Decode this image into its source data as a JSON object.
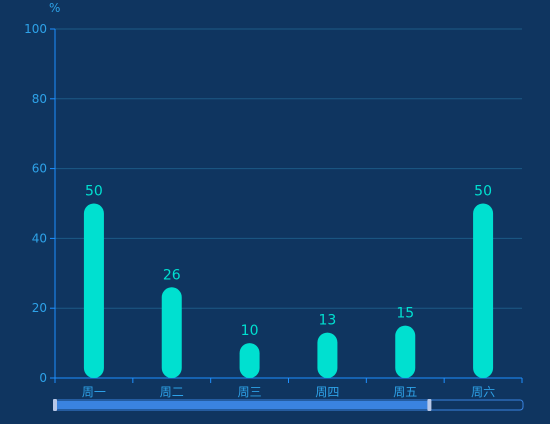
{
  "chart_data": {
    "type": "bar",
    "title": "",
    "y_unit_label": "%",
    "xlabel": "",
    "ylabel": "",
    "categories": [
      "周一",
      "周二",
      "周三",
      "周四",
      "周五",
      "周六"
    ],
    "series": [
      {
        "values": [
          50,
          26,
          10,
          13,
          15,
          50
        ]
      }
    ],
    "ylim": [
      0,
      100
    ],
    "yticks": [
      0,
      20,
      40,
      60,
      80,
      100
    ],
    "grid": true,
    "data_labels": true,
    "colors": {
      "background": "#0f3560",
      "bar": "#00e0d0",
      "axis": "#1e90ff",
      "grid": "#1d5a86",
      "tick_label": "#2ea2e8",
      "data_label": "#00e0d0",
      "slider_track": "#0f3560",
      "slider_fill": "#3a83e0",
      "slider_handle": "#b8c8e8"
    }
  },
  "data_zoom": {
    "start_fraction": 0.0,
    "end_fraction": 0.8
  }
}
